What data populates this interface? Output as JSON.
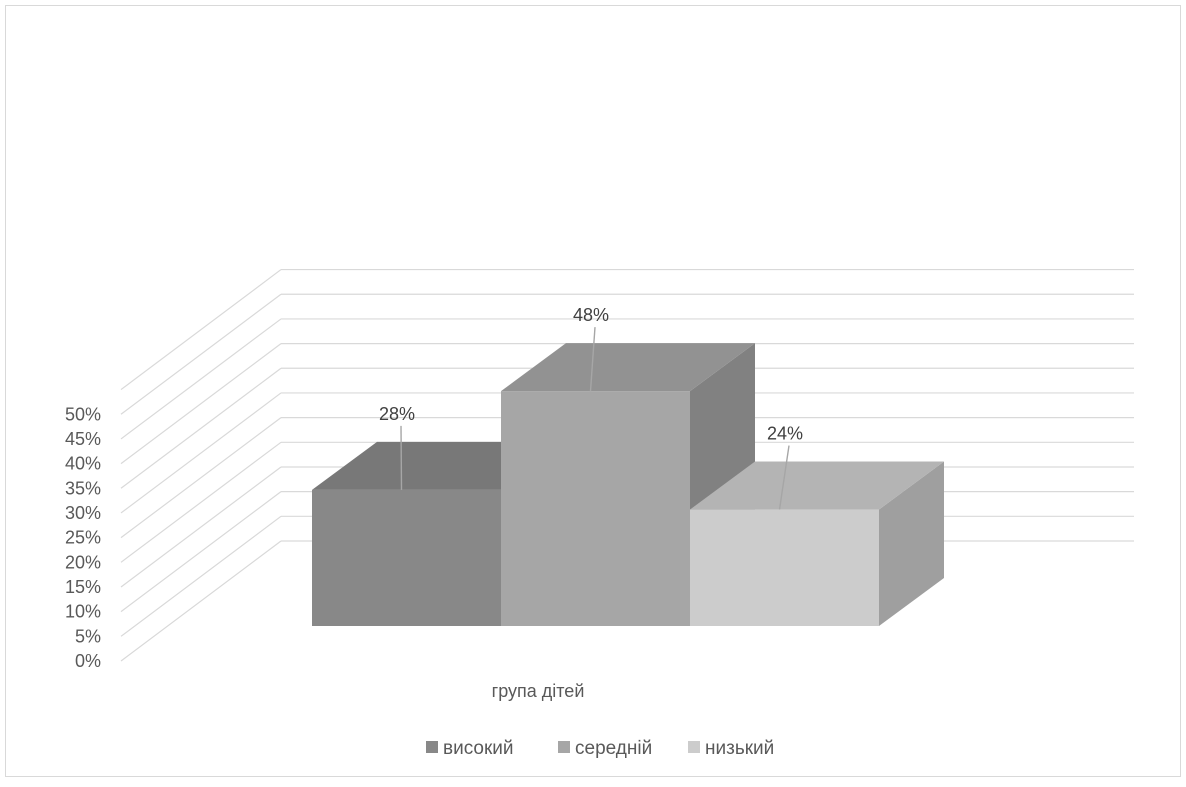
{
  "chart_data": {
    "type": "bar",
    "subtype": "3d-clustered-column",
    "categories": [
      "група дітей"
    ],
    "series": [
      {
        "name": "високий",
        "values": [
          28
        ],
        "color": "#888888",
        "data_label": "28%"
      },
      {
        "name": "середній",
        "values": [
          48
        ],
        "color": "#a6a6a6",
        "data_label": "48%"
      },
      {
        "name": "низький",
        "values": [
          24
        ],
        "color": "#cccccc",
        "data_label": "24%"
      }
    ],
    "yticks": [
      "0%",
      "5%",
      "10%",
      "15%",
      "20%",
      "25%",
      "30%",
      "35%",
      "40%",
      "45%",
      "50%"
    ],
    "ylim": [
      0,
      50
    ],
    "grid": true,
    "legend": "bottom"
  }
}
